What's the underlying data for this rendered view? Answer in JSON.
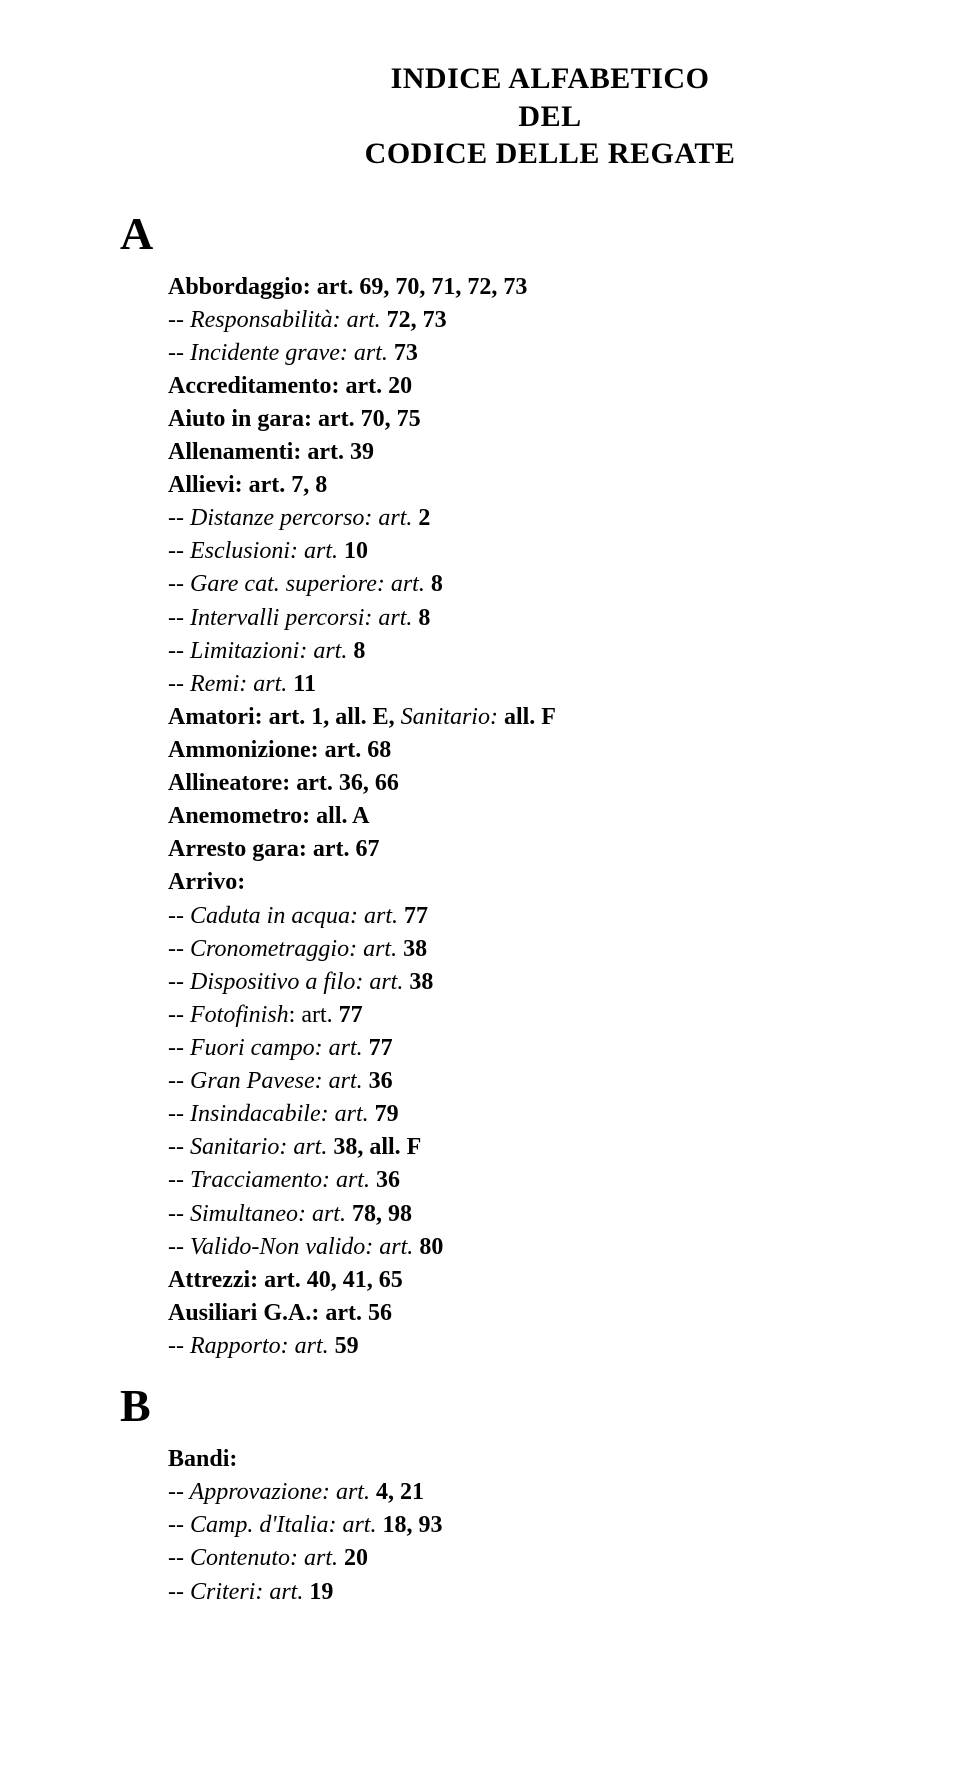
{
  "title": {
    "line1": "INDICE ALFABETICO",
    "line2": "DEL",
    "line3": "CODICE DELLE REGATE"
  },
  "sections": {
    "A": {
      "letter": "A",
      "items": [
        {
          "bold": "Abbordaggio: art. 69, 70, 71, 72, 73"
        },
        {
          "sub": true,
          "italic": "-- Responsabilità: art.",
          "bold": " 72, 73"
        },
        {
          "sub": true,
          "italic": "-- Incidente grave: art.",
          "bold": " 73"
        },
        {
          "bold": "Accreditamento: art. 20"
        },
        {
          "bold": "Aiuto in gara: art. 70, 75"
        },
        {
          "bold": "Allenamenti: art. 39"
        },
        {
          "bold": "Allievi: art. 7, 8"
        },
        {
          "sub": true,
          "italic": "-- Distanze percorso: art.",
          "bold": " 2"
        },
        {
          "sub": true,
          "italic": "-- Esclusioni: art.",
          "bold": " 10"
        },
        {
          "sub": true,
          "italic": "-- Gare cat. superiore: art.",
          "bold": " 8"
        },
        {
          "sub": true,
          "italic": "-- Intervalli percorsi: art.",
          "bold": " 8"
        },
        {
          "sub": true,
          "italic": "-- Limitazioni: art.",
          "bold": " 8"
        },
        {
          "sub": true,
          "italic": "-- Remi: art.",
          "bold": " 11"
        },
        {
          "bold": "Amatori: art. 1, all. E, ",
          "italic_tail": "Sanitario:",
          "bold_tail": " all. F"
        },
        {
          "bold": "Ammonizione: art. 68"
        },
        {
          "bold": "Allineatore: art. 36, 66"
        },
        {
          "bold": "Anemometro: all. A"
        },
        {
          "bold": "Arresto gara: art. 67"
        },
        {
          "bold": "Arrivo:"
        },
        {
          "sub": true,
          "italic": "-- Caduta in acqua: art.",
          "bold": " 77"
        },
        {
          "sub": true,
          "italic": "-- Cronometraggio: art.",
          "bold": " 38"
        },
        {
          "sub": true,
          "italic": "-- Dispositivo a filo: art.",
          "bold": " 38"
        },
        {
          "sub": true,
          "italic": "-- Fotofinish",
          "plain": ": art.",
          "bold": " 77"
        },
        {
          "sub": true,
          "italic": "-- Fuori campo: art.",
          "bold": " 77"
        },
        {
          "sub": true,
          "italic": "-- Gran Pavese: art.",
          "bold": " 36"
        },
        {
          "sub": true,
          "italic": "-- Insindacabile: art.",
          "bold": " 79"
        },
        {
          "sub": true,
          "italic": "-- Sanitario: art.",
          "bold": " 38, all. F"
        },
        {
          "sub": true,
          "italic": "-- Tracciamento: art.",
          "bold": " 36"
        },
        {
          "sub": true,
          "italic": "-- Simultaneo: art.",
          "bold": " 78, 98"
        },
        {
          "sub": true,
          "italic": "-- Valido-Non valido: art.",
          "bold": " 80"
        },
        {
          "bold": "Attrezzi: art. 40, 41, 65"
        },
        {
          "bold": "Ausiliari G.A.: art. 56"
        },
        {
          "sub": true,
          "italic": "-- Rapporto: art.",
          "bold": " 59"
        }
      ]
    },
    "B": {
      "letter": "B",
      "items": [
        {
          "bold": "Bandi:"
        },
        {
          "sub": true,
          "italic": "-- Approvazione: art.",
          "bold": " 4, 21"
        },
        {
          "sub": true,
          "italic": "-- Camp. d'Italia: art.",
          "bold": " 18, 93"
        },
        {
          "sub": true,
          "italic": "-- Contenuto: art.",
          "bold": " 20"
        },
        {
          "sub": true,
          "italic": "-- Criteri: art.",
          "bold": " 19"
        }
      ]
    }
  }
}
